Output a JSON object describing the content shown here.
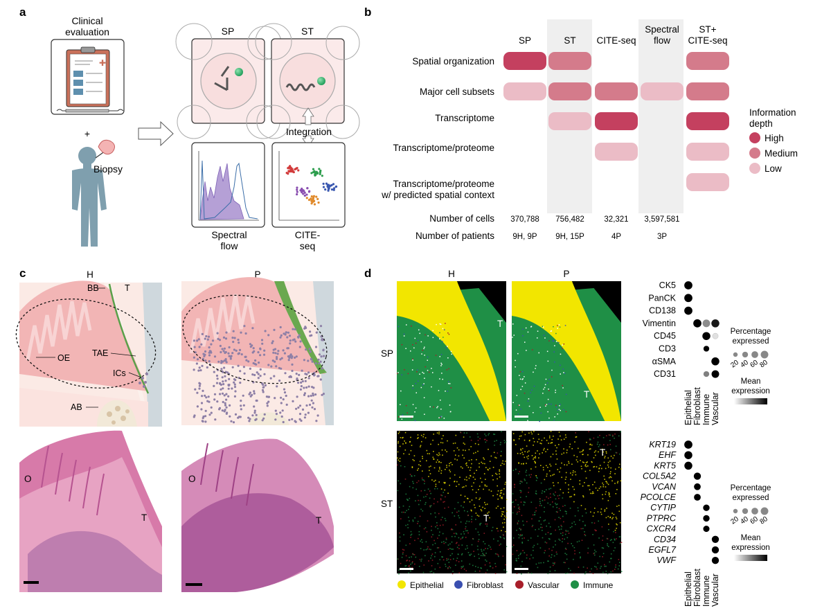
{
  "panel_letters": [
    "a",
    "b",
    "c",
    "d"
  ],
  "panel_a": {
    "clinical_evaluation": [
      "Clinical",
      "evaluation"
    ],
    "plus": "+",
    "biopsy": "Biopsy",
    "sp": "SP",
    "st": "ST",
    "integration": "Integration",
    "spectral_flow": [
      "Spectral",
      "flow"
    ],
    "cite_seq": [
      "CITE-",
      "seq"
    ],
    "colors": {
      "cell_fill": "#f6dede",
      "cell_line": "#a8a8a8",
      "flow_fill": "#a88fcf",
      "flow_line": "#3b6ea8",
      "cluster_red": "#d23b3b",
      "cluster_green": "#2e9e4e",
      "cluster_purple": "#8a4fb0",
      "cluster_blue": "#3a58b0",
      "cluster_orange": "#e08a2c",
      "person": "#7f9fae"
    }
  },
  "panel_b": {
    "columns": [
      [
        "SP"
      ],
      [
        "ST"
      ],
      [
        "CITE-seq"
      ],
      [
        "Spectral",
        "flow"
      ],
      [
        "ST+",
        "CITE-seq"
      ]
    ],
    "rows": [
      {
        "label": [
          "Spatial organization"
        ],
        "levels": [
          "high",
          "medium",
          null,
          null,
          "medium"
        ]
      },
      {
        "label": [
          "Major cell subsets"
        ],
        "levels": [
          "low",
          "medium",
          "medium",
          "low",
          "medium"
        ]
      },
      {
        "label": [
          "Transcriptome"
        ],
        "levels": [
          null,
          "low",
          "high",
          null,
          "high"
        ]
      },
      {
        "label": [
          "Transcriptome/proteome"
        ],
        "levels": [
          null,
          null,
          "low",
          null,
          "low"
        ]
      },
      {
        "label": [
          "Transcriptome/proteome",
          "w/ predicted spatial context"
        ],
        "levels": [
          null,
          null,
          null,
          null,
          "low"
        ]
      }
    ],
    "number_of_cells_label": "Number of cells",
    "number_of_cells": [
      "370,788",
      "756,482",
      "32,321",
      "3,597,581",
      ""
    ],
    "number_of_patients_label": "Number of patients",
    "number_of_patients": [
      "9H, 9P",
      "9H, 15P",
      "4P",
      "3P",
      ""
    ],
    "legend": {
      "title": [
        "Information",
        "depth"
      ],
      "items": [
        {
          "label": "High",
          "level": "high"
        },
        {
          "label": "Medium",
          "level": "medium"
        },
        {
          "label": "Low",
          "level": "low"
        }
      ]
    },
    "colors": {
      "high": "#c4405f",
      "medium": "#d47b8b",
      "low": "#ebbcc6",
      "band": "#efefef"
    }
  },
  "panel_c": {
    "h_label": "H",
    "p_label": "P",
    "labels": {
      "bb": "BB",
      "t": "T",
      "oe": "OE",
      "tae": "TAE",
      "ics": "ICs",
      "ab": "AB"
    },
    "histo_labels": {
      "o_left": "O",
      "t_left": "T",
      "o_right": "O",
      "t_right": "T"
    },
    "colors": {
      "gingiva": "#f2b5b5",
      "gingiva_dark": "#e99a9a",
      "tooth": "#c9d4da",
      "background": "#fbe9e4",
      "bone": "#f0e6d2",
      "immune": "#8d7fa6",
      "green": "#6aa84f",
      "he_pink": "#d77aa9",
      "he_purple": "#8a3f87"
    }
  },
  "panel_d": {
    "h_label": "H",
    "p_label": "P",
    "sp_label": "SP",
    "st_label": "ST",
    "t_labels": [
      "T",
      "T",
      "T",
      "T"
    ],
    "legend": [
      {
        "label": "Epithelial",
        "color": "#f2e600"
      },
      {
        "label": "Fibroblast",
        "color": "#3a4fb0"
      },
      {
        "label": "Vascular",
        "color": "#a81e2a"
      },
      {
        "label": "Immune",
        "color": "#1f8f46"
      }
    ],
    "cell_types": [
      "Epithelial",
      "Fibroblast",
      "Immune",
      "Vascular"
    ],
    "sp_dotplot": {
      "genes": [
        "CK5",
        "PanCK",
        "CD138",
        "Vimentin",
        "CD45",
        "CD3",
        "αSMA",
        "CD31"
      ],
      "pct": [
        [
          95,
          0,
          0,
          0
        ],
        [
          95,
          0,
          0,
          0
        ],
        [
          95,
          0,
          0,
          0
        ],
        [
          0,
          95,
          80,
          90
        ],
        [
          0,
          0,
          90,
          40
        ],
        [
          0,
          0,
          40,
          0
        ],
        [
          0,
          0,
          0,
          90
        ],
        [
          0,
          0,
          40,
          80
        ]
      ],
      "expr": [
        [
          1,
          0,
          0,
          0
        ],
        [
          1,
          0,
          0,
          0
        ],
        [
          1,
          0,
          0,
          0
        ],
        [
          0,
          1,
          0.45,
          0.9
        ],
        [
          0,
          0,
          1,
          0.12
        ],
        [
          0,
          0,
          1,
          0
        ],
        [
          0,
          0,
          0,
          1
        ],
        [
          0,
          0,
          0.5,
          1
        ]
      ]
    },
    "st_dotplot": {
      "genes": [
        "KRT19",
        "EHF",
        "KRT5",
        "COL5A2",
        "VCAN",
        "PCOLCE",
        "CYTIP",
        "PTPRC",
        "CXCR4",
        "CD34",
        "EGFL7",
        "VWF"
      ],
      "pct": [
        [
          95,
          0,
          0,
          0
        ],
        [
          90,
          0,
          0,
          0
        ],
        [
          90,
          0,
          0,
          0
        ],
        [
          0,
          70,
          0,
          0
        ],
        [
          0,
          60,
          0,
          0
        ],
        [
          0,
          60,
          0,
          0
        ],
        [
          0,
          0,
          55,
          0
        ],
        [
          0,
          0,
          55,
          0
        ],
        [
          0,
          0,
          50,
          0
        ],
        [
          0,
          0,
          0,
          70
        ],
        [
          0,
          0,
          0,
          70
        ],
        [
          0,
          0,
          0,
          70
        ]
      ],
      "expr": [
        [
          1,
          0,
          0,
          0
        ],
        [
          1,
          0,
          0,
          0
        ],
        [
          1,
          0,
          0,
          0
        ],
        [
          0,
          1,
          0,
          0
        ],
        [
          0,
          1,
          0,
          0
        ],
        [
          0,
          1,
          0,
          0
        ],
        [
          0,
          0,
          1,
          0
        ],
        [
          0,
          0,
          1,
          0
        ],
        [
          0,
          0,
          1,
          0
        ],
        [
          0,
          0,
          0,
          1
        ],
        [
          0,
          0,
          0,
          1
        ],
        [
          0,
          0,
          0,
          1
        ]
      ]
    },
    "size_legend": {
      "title": [
        "Percentage",
        "expressed"
      ],
      "ticks": [
        "20",
        "40",
        "60",
        "80"
      ]
    },
    "color_legend": {
      "title": [
        "Mean",
        "expression"
      ]
    }
  }
}
